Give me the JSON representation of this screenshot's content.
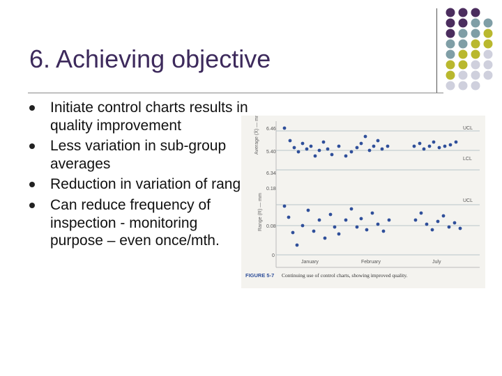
{
  "slide": {
    "title": "6. Achieving objective",
    "bullets": [
      "Initiate control charts results in quality improvement",
      "Less variation in sub-group averages",
      "Reduction in variation of range",
      "Can reduce frequency of inspection - monitoring purpose – even once/mth."
    ]
  },
  "figure": {
    "caption_label": "FIGURE 5-7",
    "caption_text": "Continuing use of control charts, showing improved quality.",
    "avg_axis_label": "Average (X̄) — mm",
    "range_axis_label": "Range (R) — mm",
    "avg_ticks": [
      "6.46",
      "5.40",
      "6.34",
      "0.18"
    ],
    "range_ticks": [
      "0.08",
      "0"
    ],
    "ucl_label": "UCL",
    "lcl_label": "LCL",
    "months": [
      "January",
      "February",
      "July"
    ]
  },
  "colors": {
    "title": "#3d2a5c",
    "dot_purple": "#4b2d5e",
    "dot_gray": "#7f9ea6",
    "dot_yellow": "#b9b82e",
    "dot_light": "#cfd0dd",
    "point_blue": "#2f4f9a"
  }
}
